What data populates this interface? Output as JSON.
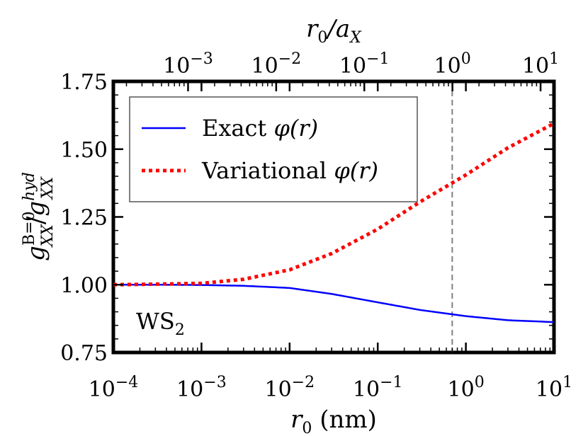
{
  "chart_data": {
    "type": "line",
    "title": "",
    "xlabel_text": "r",
    "xlabel_sub": "0",
    "xlabel_unit": " (nm)",
    "top_xlabel_a": "r",
    "top_xlabel_sub": "0",
    "top_xlabel_mid": "/a",
    "top_xlabel_sub2": "X",
    "ylabel": "g_XX^{B=0} / g_XX^{hyd}",
    "ylabel_parts": {
      "g1": "g",
      "sup1": "B=0",
      "sub1": "XX",
      "slash": "/",
      "g2": "g",
      "sup2": "hyd",
      "sub2": "XX"
    },
    "xscale": "log",
    "xlim": [
      0.0001,
      10
    ],
    "ylim": [
      0.75,
      1.75
    ],
    "x_ticks": [
      {
        "value": 0.0001,
        "base": "10",
        "exp": "−4"
      },
      {
        "value": 0.001,
        "base": "10",
        "exp": "−3"
      },
      {
        "value": 0.01,
        "base": "10",
        "exp": "−2"
      },
      {
        "value": 0.1,
        "base": "10",
        "exp": "−1"
      },
      {
        "value": 1,
        "base": "10",
        "exp": "0"
      },
      {
        "value": 10,
        "base": "10",
        "exp": "1"
      }
    ],
    "top_x_ticks": [
      {
        "value": 0.001,
        "base": "10",
        "exp": "−3"
      },
      {
        "value": 0.01,
        "base": "10",
        "exp": "−2"
      },
      {
        "value": 0.1,
        "base": "10",
        "exp": "−1"
      },
      {
        "value": 1,
        "base": "10",
        "exp": "0"
      },
      {
        "value": 10,
        "base": "10",
        "exp": "1"
      }
    ],
    "top_axis_scale": 1.42,
    "y_ticks": [
      "0.75",
      "1.00",
      "1.25",
      "1.50",
      "1.75"
    ],
    "vline_x": 0.7,
    "annotation": {
      "text": "WS",
      "sub": "2"
    },
    "legend_position": "top-left",
    "series": [
      {
        "name": "Exact φ(r)",
        "legend_label": "Exact ",
        "legend_symbol": "φ(r)",
        "color": "#0000ff",
        "style": "solid",
        "x": [
          0.0001,
          0.0003,
          0.001,
          0.003,
          0.01,
          0.03,
          0.1,
          0.3,
          1,
          3,
          10
        ],
        "y": [
          1.0,
          1.0,
          0.999,
          0.996,
          0.988,
          0.966,
          0.935,
          0.907,
          0.884,
          0.869,
          0.862
        ]
      },
      {
        "name": "Variational φ(r)",
        "legend_label": "Variational ",
        "legend_symbol": "φ(r)",
        "color": "#ff0000",
        "style": "dotted",
        "x": [
          0.0001,
          0.0003,
          0.001,
          0.003,
          0.01,
          0.03,
          0.1,
          0.3,
          1,
          3,
          10
        ],
        "y": [
          1.0,
          1.002,
          1.005,
          1.02,
          1.055,
          1.115,
          1.205,
          1.305,
          1.405,
          1.505,
          1.595
        ]
      }
    ],
    "colors": {
      "vline": "#808080",
      "frame": "#000000",
      "legend_border": "#555555"
    }
  }
}
